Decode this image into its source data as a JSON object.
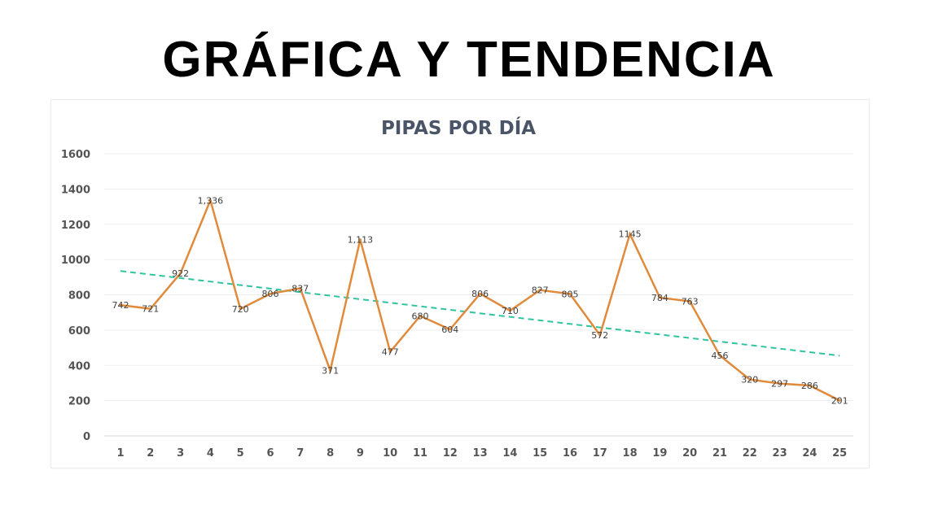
{
  "page_title": "GRÁFICA Y TENDENCIA",
  "chart_data": {
    "type": "line",
    "title": "PIPAS  POR DÍA",
    "xlabel": "",
    "ylabel": "",
    "categories": [
      "1",
      "2",
      "3",
      "4",
      "5",
      "6",
      "7",
      "8",
      "9",
      "10",
      "11",
      "12",
      "13",
      "14",
      "15",
      "16",
      "17",
      "18",
      "19",
      "20",
      "21",
      "22",
      "23",
      "24",
      "25"
    ],
    "yticks": [
      "0",
      "200",
      "400",
      "600",
      "800",
      "1000",
      "1200",
      "1400",
      "1600"
    ],
    "ylim": [
      0,
      1600
    ],
    "grid": true,
    "legend": "none",
    "series": [
      {
        "color": "#e08a3c",
        "values": [
          742,
          721,
          922,
          1336,
          720,
          806,
          837,
          371,
          1113,
          477,
          680,
          604,
          806,
          710,
          827,
          805,
          572,
          1145,
          784,
          763,
          456,
          320,
          297,
          286,
          201
        ],
        "labels": [
          "742",
          "721",
          "922",
          "1,336",
          "720",
          "806",
          "837",
          "371",
          "1,113",
          "477",
          "680",
          "604",
          "806",
          "710",
          "827",
          "805",
          "572",
          "1145",
          "784",
          "763",
          "456",
          "320",
          "297",
          "286",
          "201"
        ]
      }
    ],
    "trendline": {
      "color": "#2ec4a0",
      "style": "dashed",
      "start": 935,
      "end": 455
    }
  }
}
